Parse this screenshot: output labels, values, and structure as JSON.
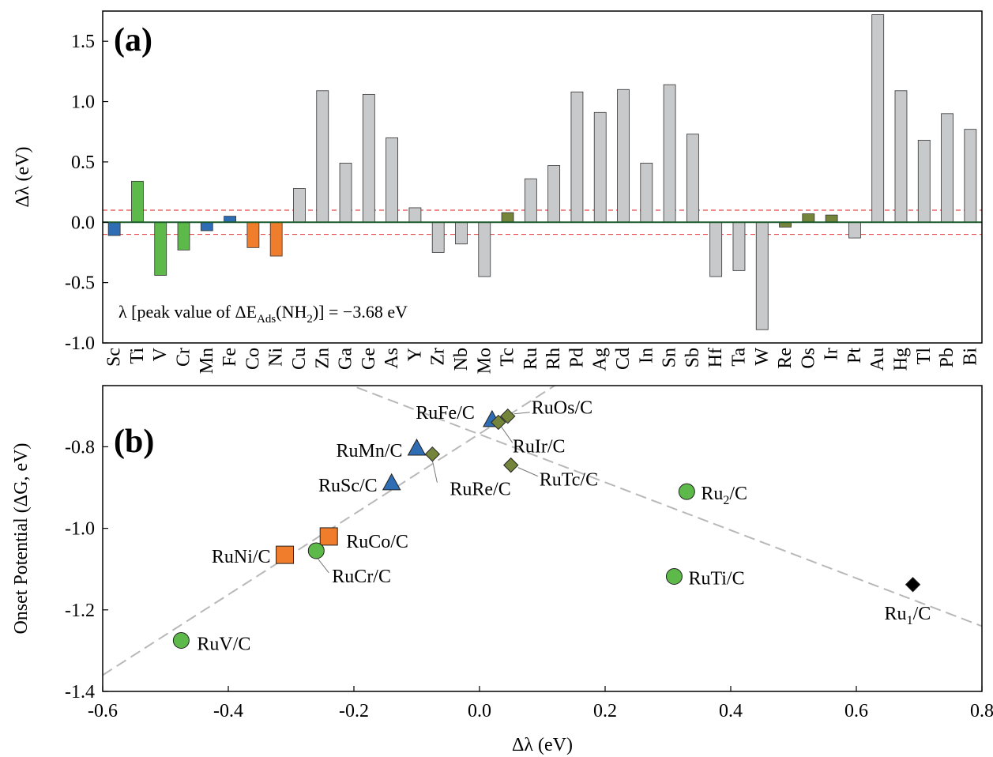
{
  "colors": {
    "blue": "#2e6db4",
    "green": "#5db94a",
    "orange": "#f07d2c",
    "gray": "#c8c9cb",
    "olive": "#74843a",
    "black": "#000000",
    "reference_line": "#e34b4b",
    "trend_line": "#b8b8b8",
    "zero_line": "#1a5a2a"
  },
  "chart_data": [
    {
      "type": "bar",
      "panel_label": "(a)",
      "ylabel": "Δλ (eV)",
      "ylim": [
        -1.0,
        1.75
      ],
      "yticks": [
        "-1.0",
        "-0.5",
        "0.0",
        "0.5",
        "1.0",
        "1.5"
      ],
      "annotation": {
        "prefix": "λ [peak value of ΔE",
        "sub1": "Ads",
        "middle": "(NH",
        "sub2": "2",
        "suffix": ")] = −3.68 eV"
      },
      "reference_lines": [
        0.1,
        -0.1
      ],
      "categories": [
        "Sc",
        "Ti",
        "V",
        "Cr",
        "Mn",
        "Fe",
        "Co",
        "Ni",
        "Cu",
        "Zn",
        "Ga",
        "Ge",
        "As",
        "Y",
        "Zr",
        "Nb",
        "Mo",
        "Tc",
        "Ru",
        "Rh",
        "Pd",
        "Ag",
        "Cd",
        "In",
        "Sn",
        "Sb",
        "Hf",
        "Ta",
        "W",
        "Re",
        "Os",
        "Ir",
        "Pt",
        "Au",
        "Hg",
        "Tl",
        "Pb",
        "Bi"
      ],
      "values": [
        -0.11,
        0.34,
        -0.44,
        -0.23,
        -0.07,
        0.05,
        -0.21,
        -0.28,
        0.28,
        1.09,
        0.49,
        1.06,
        0.7,
        0.12,
        -0.25,
        -0.18,
        -0.45,
        0.08,
        0.36,
        0.47,
        1.08,
        0.91,
        1.1,
        0.49,
        1.14,
        0.73,
        -0.45,
        -0.4,
        -0.89,
        -0.04,
        0.07,
        0.06,
        -0.13,
        1.72,
        1.09,
        0.68,
        0.9,
        0.77
      ],
      "bar_colors": [
        "blue",
        "green",
        "green",
        "green",
        "blue",
        "blue",
        "orange",
        "orange",
        "gray",
        "gray",
        "gray",
        "gray",
        "gray",
        "gray",
        "gray",
        "gray",
        "gray",
        "olive",
        "gray",
        "gray",
        "gray",
        "gray",
        "gray",
        "gray",
        "gray",
        "gray",
        "gray",
        "gray",
        "gray",
        "olive",
        "olive",
        "olive",
        "gray",
        "gray",
        "gray",
        "gray",
        "gray",
        "gray"
      ]
    },
    {
      "type": "scatter",
      "panel_label": "(b)",
      "xlabel": "Δλ (eV)",
      "ylabel": "Onset Potential (ΔG, eV)",
      "xlim": [
        -0.6,
        0.8
      ],
      "ylim": [
        -1.4,
        -0.65
      ],
      "xticks": [
        "-0.6",
        "-0.4",
        "-0.2",
        "0.0",
        "0.2",
        "0.4",
        "0.6",
        "0.8"
      ],
      "yticks": [
        "-1.4",
        "-1.2",
        "-1.0",
        "-0.8"
      ],
      "trend_lines": [
        {
          "x1": -0.6,
          "y1": -1.36,
          "x2": 0.14,
          "y2": -0.63
        },
        {
          "x1": -0.22,
          "y1": -0.64,
          "x2": 0.8,
          "y2": -1.24
        }
      ],
      "points": [
        {
          "label": "RuFe/C",
          "x": 0.02,
          "y": -0.735,
          "shape": "triangle",
          "color": "blue"
        },
        {
          "label": "RuOs/C",
          "x": 0.045,
          "y": -0.725,
          "shape": "diamond",
          "color": "olive"
        },
        {
          "label": "RuIr/C",
          "x": 0.03,
          "y": -0.74,
          "shape": "diamond",
          "color": "olive"
        },
        {
          "label": "RuMn/C",
          "x": -0.1,
          "y": -0.805,
          "shape": "triangle",
          "color": "blue"
        },
        {
          "label": "RuRe/C",
          "x": -0.075,
          "y": -0.818,
          "shape": "diamond",
          "color": "olive"
        },
        {
          "label": "RuTc/C",
          "x": 0.05,
          "y": -0.845,
          "shape": "diamond",
          "color": "olive"
        },
        {
          "label": "RuSc/C",
          "x": -0.14,
          "y": -0.89,
          "shape": "triangle",
          "color": "blue"
        },
        {
          "label": "RuCo/C",
          "x": -0.24,
          "y": -1.02,
          "shape": "square",
          "color": "orange"
        },
        {
          "label": "RuNi/C",
          "x": -0.31,
          "y": -1.065,
          "shape": "square",
          "color": "orange"
        },
        {
          "label": "RuCr/C",
          "x": -0.26,
          "y": -1.055,
          "shape": "circle",
          "color": "green"
        },
        {
          "label": "RuV/C",
          "x": -0.475,
          "y": -1.275,
          "shape": "circle",
          "color": "green"
        },
        {
          "label": "RuTi/C",
          "x": 0.31,
          "y": -1.118,
          "shape": "circle",
          "color": "green"
        },
        {
          "label_main": "Ru",
          "label_sub": "2",
          "label_tail": "/C",
          "x": 0.33,
          "y": -0.91,
          "shape": "circle",
          "color": "green"
        },
        {
          "label_main": "Ru",
          "label_sub": "1",
          "label_tail": "/C",
          "x": 0.69,
          "y": -1.138,
          "shape": "diamond",
          "color": "black"
        }
      ]
    }
  ]
}
